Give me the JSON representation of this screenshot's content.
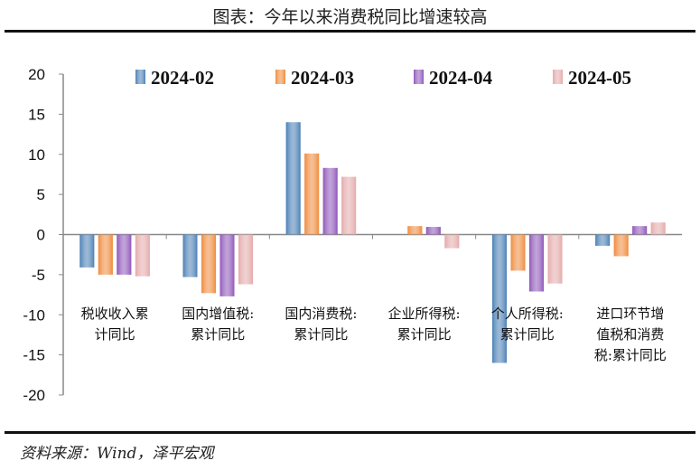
{
  "title": "图表：今年以来消费税同比增速较高",
  "source": "资料来源：Wind，泽平宏观",
  "chart_data": {
    "type": "bar",
    "title": "图表：今年以来消费税同比增速较高",
    "categories": [
      [
        "税收收入累",
        "计同比"
      ],
      [
        "国内增值税:",
        "累计同比"
      ],
      [
        "国内消费税:",
        "累计同比"
      ],
      [
        "企业所得税:",
        "累计同比"
      ],
      [
        "个人所得税:",
        "累计同比"
      ],
      [
        "进口环节增",
        "值税和消费",
        "税:累计同比"
      ]
    ],
    "series": [
      {
        "name": "2024-02",
        "color": "#4a7fb5",
        "values": [
          -4.1,
          -5.3,
          14.0,
          0,
          -16.0,
          -1.4
        ]
      },
      {
        "name": "2024-03",
        "color": "#ee8a3c",
        "values": [
          -5.0,
          -7.3,
          10.1,
          1.05,
          -4.5,
          -2.7
        ]
      },
      {
        "name": "2024-04",
        "color": "#8e55b8",
        "values": [
          -5.0,
          -7.7,
          8.3,
          0.95,
          -7.1,
          1.05
        ]
      },
      {
        "name": "2024-05",
        "color": "#e4aaaa",
        "values": [
          -5.2,
          -6.2,
          7.2,
          -1.7,
          -6.1,
          1.5
        ]
      }
    ],
    "ylim": [
      -20,
      20
    ],
    "yticks": [
      20,
      15,
      10,
      5,
      0,
      -5,
      -10,
      -15,
      -20
    ],
    "grid": false,
    "legend": "top"
  }
}
